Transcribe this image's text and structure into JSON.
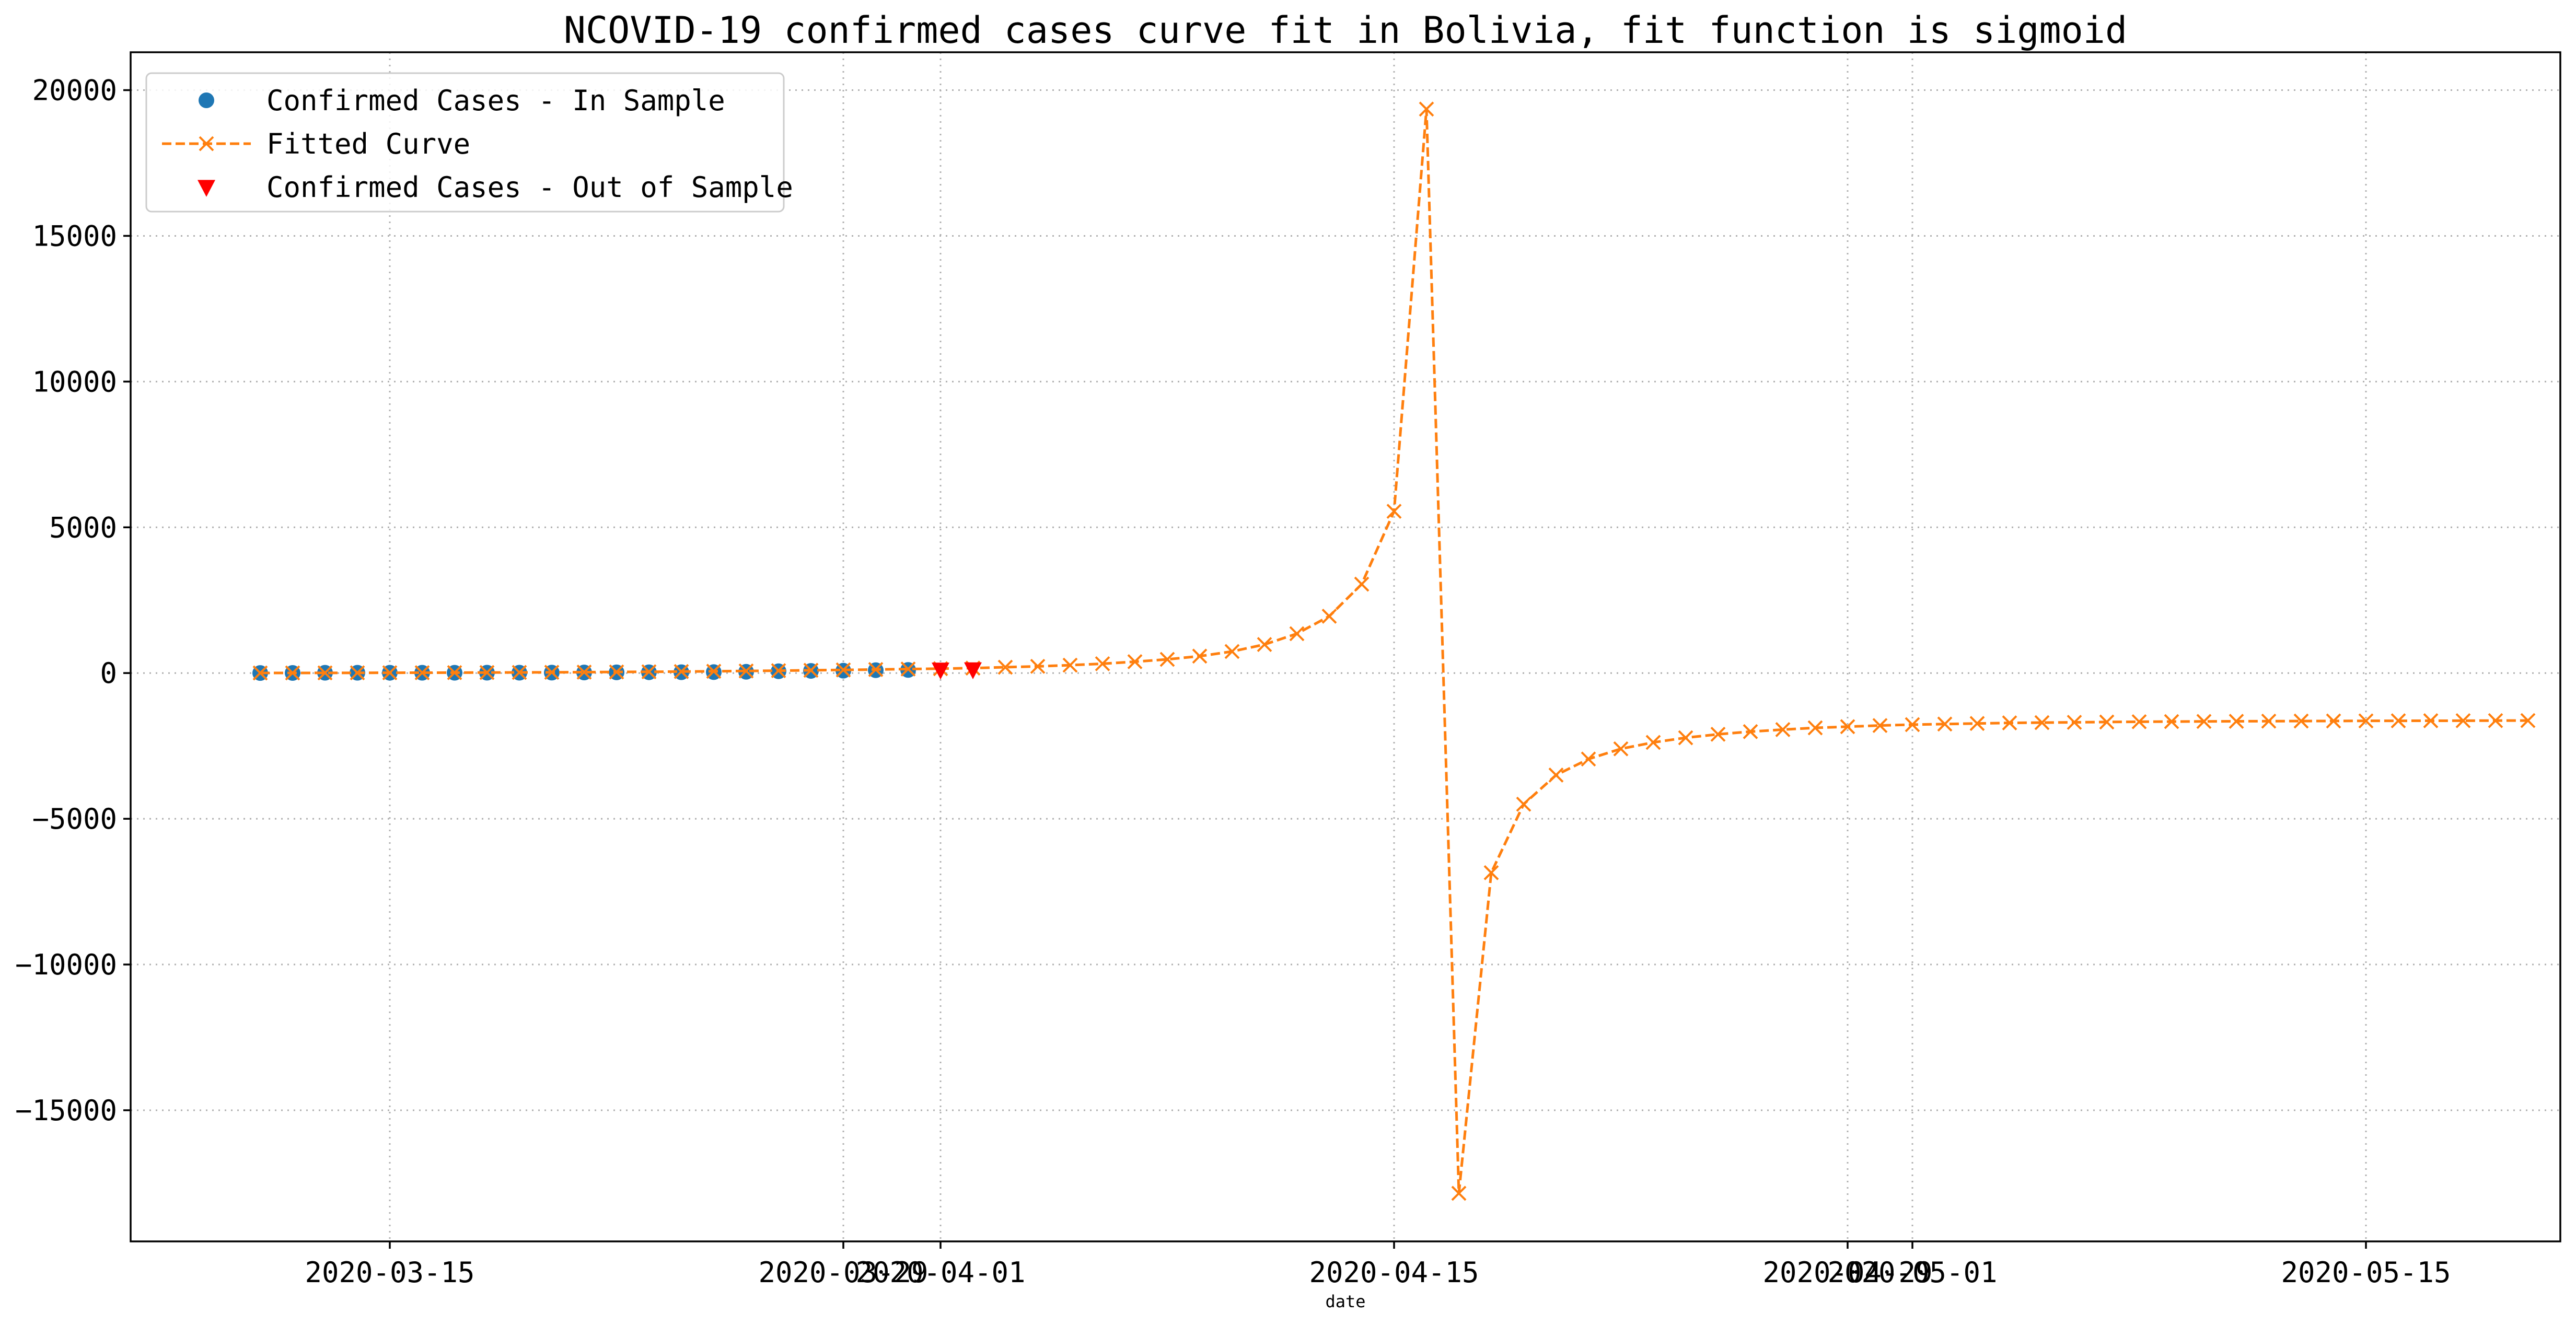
{
  "chart_data": {
    "type": "line",
    "title": "NCOVID-19 confirmed cases curve fit in Bolivia, fit function is sigmoid",
    "xlabel": "date",
    "ylabel": "",
    "xlim": [
      "2020-03-07",
      "2020-05-21"
    ],
    "ylim": [
      -19500,
      21300
    ],
    "grid": true,
    "legend_position": "upper-left",
    "x_ticks": [
      "2020-03-15",
      "2020-03-29",
      "2020-04-01",
      "2020-04-15",
      "2020-04-29",
      "2020-05-01",
      "2020-05-15"
    ],
    "y_ticks": [
      {
        "value": -15000,
        "label": "−15000"
      },
      {
        "value": -10000,
        "label": "−10000"
      },
      {
        "value": -5000,
        "label": "−5000"
      },
      {
        "value": 0,
        "label": "0"
      },
      {
        "value": 5000,
        "label": "5000"
      },
      {
        "value": 10000,
        "label": "10000"
      },
      {
        "value": 15000,
        "label": "15000"
      },
      {
        "value": 20000,
        "label": "20000"
      }
    ],
    "series": [
      {
        "name": "Confirmed Cases - In Sample",
        "style": "circle",
        "color": "#1f77b4",
        "points": [
          [
            "2020-03-11",
            2
          ],
          [
            "2020-03-12",
            3
          ],
          [
            "2020-03-13",
            10
          ],
          [
            "2020-03-14",
            10
          ],
          [
            "2020-03-15",
            10
          ],
          [
            "2020-03-16",
            11
          ],
          [
            "2020-03-17",
            11
          ],
          [
            "2020-03-18",
            12
          ],
          [
            "2020-03-19",
            12
          ],
          [
            "2020-03-20",
            15
          ],
          [
            "2020-03-21",
            19
          ],
          [
            "2020-03-22",
            24
          ],
          [
            "2020-03-23",
            27
          ],
          [
            "2020-03-24",
            29
          ],
          [
            "2020-03-25",
            32
          ],
          [
            "2020-03-26",
            43
          ],
          [
            "2020-03-27",
            61
          ],
          [
            "2020-03-28",
            74
          ],
          [
            "2020-03-29",
            81
          ],
          [
            "2020-03-30",
            97
          ],
          [
            "2020-03-31",
            107
          ]
        ]
      },
      {
        "name": "Fitted Curve",
        "style": "dashed-x",
        "color": "#ff7f0e",
        "points": [
          [
            "2020-03-11",
            3
          ],
          [
            "2020-03-12",
            4
          ],
          [
            "2020-03-13",
            6
          ],
          [
            "2020-03-14",
            8
          ],
          [
            "2020-03-15",
            10
          ],
          [
            "2020-03-16",
            12
          ],
          [
            "2020-03-17",
            15
          ],
          [
            "2020-03-18",
            18
          ],
          [
            "2020-03-19",
            22
          ],
          [
            "2020-03-20",
            26
          ],
          [
            "2020-03-21",
            31
          ],
          [
            "2020-03-22",
            37
          ],
          [
            "2020-03-23",
            44
          ],
          [
            "2020-03-24",
            52
          ],
          [
            "2020-03-25",
            61
          ],
          [
            "2020-03-26",
            71
          ],
          [
            "2020-03-27",
            82
          ],
          [
            "2020-03-28",
            95
          ],
          [
            "2020-03-29",
            108
          ],
          [
            "2020-03-30",
            122
          ],
          [
            "2020-03-31",
            138
          ],
          [
            "2020-04-01",
            150
          ],
          [
            "2020-04-02",
            170
          ],
          [
            "2020-04-03",
            200
          ],
          [
            "2020-04-04",
            230
          ],
          [
            "2020-04-05",
            270
          ],
          [
            "2020-04-06",
            320
          ],
          [
            "2020-04-07",
            390
          ],
          [
            "2020-04-08",
            470
          ],
          [
            "2020-04-09",
            580
          ],
          [
            "2020-04-10",
            740
          ],
          [
            "2020-04-11",
            980
          ],
          [
            "2020-04-12",
            1350
          ],
          [
            "2020-04-13",
            1950
          ],
          [
            "2020-04-14",
            3050
          ],
          [
            "2020-04-15",
            5550
          ],
          [
            "2020-04-16",
            19350
          ],
          [
            "2020-04-17",
            -17850
          ],
          [
            "2020-04-18",
            -6850
          ],
          [
            "2020-04-19",
            -4500
          ],
          [
            "2020-04-20",
            -3500
          ],
          [
            "2020-04-21",
            -2950
          ],
          [
            "2020-04-22",
            -2600
          ],
          [
            "2020-04-23",
            -2380
          ],
          [
            "2020-04-24",
            -2220
          ],
          [
            "2020-04-25",
            -2100
          ],
          [
            "2020-04-26",
            -2010
          ],
          [
            "2020-04-27",
            -1940
          ],
          [
            "2020-04-28",
            -1880
          ],
          [
            "2020-04-29",
            -1840
          ],
          [
            "2020-04-30",
            -1800
          ],
          [
            "2020-05-01",
            -1770
          ],
          [
            "2020-05-02",
            -1750
          ],
          [
            "2020-05-03",
            -1730
          ],
          [
            "2020-05-04",
            -1710
          ],
          [
            "2020-05-05",
            -1700
          ],
          [
            "2020-05-06",
            -1690
          ],
          [
            "2020-05-07",
            -1680
          ],
          [
            "2020-05-08",
            -1670
          ],
          [
            "2020-05-09",
            -1665
          ],
          [
            "2020-05-10",
            -1660
          ],
          [
            "2020-05-11",
            -1655
          ],
          [
            "2020-05-12",
            -1650
          ],
          [
            "2020-05-13",
            -1647
          ],
          [
            "2020-05-14",
            -1644
          ],
          [
            "2020-05-15",
            -1641
          ],
          [
            "2020-05-16",
            -1638
          ],
          [
            "2020-05-17",
            -1636
          ],
          [
            "2020-05-18",
            -1634
          ],
          [
            "2020-05-19",
            -1632
          ],
          [
            "2020-05-20",
            -1630
          ]
        ]
      },
      {
        "name": "Confirmed Cases - Out of Sample",
        "style": "triangle-down",
        "color": "#ff0000",
        "points": [
          [
            "2020-04-01",
            115
          ],
          [
            "2020-04-02",
            123
          ]
        ]
      }
    ]
  }
}
